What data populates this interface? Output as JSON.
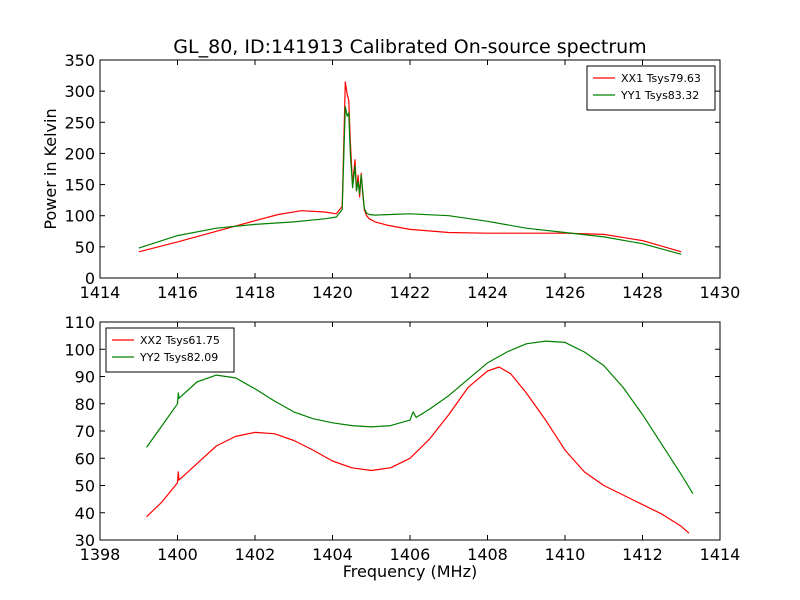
{
  "chart_data": [
    {
      "type": "line",
      "title": "GL_80, ID:141913 Calibrated On-source spectrum",
      "xlabel": "",
      "ylabel": "Power in Kelvin",
      "xlim": [
        1414,
        1430
      ],
      "ylim": [
        0,
        350
      ],
      "xticks": [
        "1414",
        "1416",
        "1418",
        "1420",
        "1422",
        "1424",
        "1426",
        "1428",
        "1430"
      ],
      "yticks": [
        "0",
        "50",
        "100",
        "150",
        "200",
        "250",
        "300",
        "350"
      ],
      "legend_position": "top-right",
      "series": [
        {
          "name": "XX1 Tsys79.63",
          "color": "#ff0000",
          "x": [
            1415.0,
            1416.0,
            1417.0,
            1418.0,
            1418.6,
            1419.2,
            1419.8,
            1420.1,
            1420.25,
            1420.33,
            1420.38,
            1420.42,
            1420.46,
            1420.52,
            1420.58,
            1420.62,
            1420.66,
            1420.7,
            1420.74,
            1420.78,
            1420.82,
            1420.88,
            1420.95,
            1421.1,
            1421.4,
            1422.0,
            1423.0,
            1424.0,
            1425.0,
            1426.0,
            1427.0,
            1428.0,
            1429.0
          ],
          "y": [
            42,
            58,
            75,
            92,
            102,
            108,
            106,
            103,
            115,
            315,
            295,
            285,
            220,
            150,
            190,
            140,
            165,
            130,
            168,
            135,
            110,
            100,
            95,
            90,
            85,
            78,
            73,
            72,
            72,
            72,
            70,
            60,
            42
          ]
        },
        {
          "name": "YY1 Tsys83.32",
          "color": "#008000",
          "x": [
            1415.0,
            1416.0,
            1417.0,
            1418.0,
            1419.0,
            1419.8,
            1420.1,
            1420.25,
            1420.33,
            1420.38,
            1420.42,
            1420.46,
            1420.52,
            1420.58,
            1420.62,
            1420.66,
            1420.7,
            1420.74,
            1420.78,
            1420.82,
            1420.88,
            1420.95,
            1421.1,
            1421.5,
            1422.0,
            1423.0,
            1424.0,
            1425.0,
            1426.0,
            1427.0,
            1428.0,
            1429.0
          ],
          "y": [
            48,
            68,
            80,
            86,
            90,
            95,
            98,
            110,
            275,
            260,
            265,
            200,
            145,
            180,
            140,
            155,
            135,
            165,
            140,
            112,
            104,
            102,
            101,
            102,
            103,
            100,
            91,
            80,
            73,
            66,
            55,
            38
          ]
        }
      ]
    },
    {
      "type": "line",
      "title": "",
      "xlabel": "Frequency (MHz)",
      "ylabel": "",
      "xlim": [
        1398,
        1414
      ],
      "ylim": [
        30,
        110
      ],
      "xticks": [
        "1398",
        "1400",
        "1402",
        "1404",
        "1406",
        "1408",
        "1410",
        "1412",
        "1414"
      ],
      "yticks": [
        "30",
        "40",
        "50",
        "60",
        "70",
        "80",
        "90",
        "100",
        "110"
      ],
      "legend_position": "top-left",
      "series": [
        {
          "name": "XX2 Tsys61.75",
          "color": "#ff0000",
          "x": [
            1399.2,
            1399.6,
            1400.0,
            1400.02,
            1400.04,
            1400.5,
            1401.0,
            1401.5,
            1402.0,
            1402.5,
            1403.0,
            1403.5,
            1404.0,
            1404.5,
            1405.0,
            1405.5,
            1406.0,
            1406.5,
            1407.0,
            1407.5,
            1408.0,
            1408.3,
            1408.6,
            1409.0,
            1409.5,
            1410.0,
            1410.5,
            1411.0,
            1411.5,
            1412.0,
            1412.5,
            1413.0,
            1413.2
          ],
          "y": [
            38.5,
            44,
            51,
            55,
            52,
            58,
            64.5,
            68,
            69.5,
            69,
            66.5,
            63,
            59,
            56.5,
            55.5,
            56.5,
            60,
            67,
            76,
            86,
            92,
            93.5,
            91,
            84,
            74,
            63,
            55,
            50,
            46.5,
            43,
            39.5,
            35,
            32.5
          ]
        },
        {
          "name": "YY2 Tsys82.09",
          "color": "#008000",
          "x": [
            1399.2,
            1399.6,
            1400.0,
            1400.02,
            1400.04,
            1400.5,
            1401.0,
            1401.5,
            1402.0,
            1402.5,
            1403.0,
            1403.5,
            1404.0,
            1404.5,
            1405.0,
            1405.5,
            1406.0,
            1406.08,
            1406.16,
            1406.5,
            1407.0,
            1407.5,
            1408.0,
            1408.5,
            1409.0,
            1409.5,
            1410.0,
            1410.5,
            1411.0,
            1411.5,
            1412.0,
            1412.5,
            1413.0,
            1413.3
          ],
          "y": [
            64,
            72,
            80,
            84,
            82,
            88,
            90.5,
            89.5,
            85.5,
            81,
            77,
            74.5,
            73,
            72,
            71.5,
            72,
            74,
            77,
            75,
            78,
            83,
            89,
            95,
            99,
            102,
            103,
            102.5,
            99,
            94,
            86,
            76,
            65,
            54,
            47
          ]
        }
      ]
    }
  ]
}
